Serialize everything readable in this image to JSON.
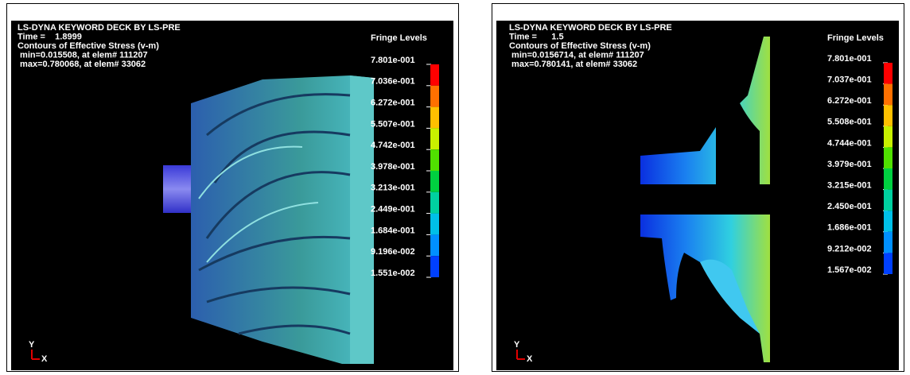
{
  "panels": [
    {
      "header": [
        "LS-DYNA KEYWORD DECK BY LS-PRE",
        "Time =    1.8999",
        "Contours of Effective Stress (v-m)",
        " min=0.015508, at elem# 111207",
        " max=0.780068, at elem# 33062"
      ],
      "legend_title": "Fringe Levels",
      "levels": [
        "7.801e-001",
        "7.036e-001",
        "6.272e-001",
        "5.507e-001",
        "4.742e-001",
        "3.978e-001",
        "3.213e-001",
        "2.449e-001",
        "1.684e-001",
        "9.196e-002",
        "1.551e-002"
      ],
      "axes": [
        "Y",
        "X"
      ]
    },
    {
      "header": [
        "LS-DYNA KEYWORD DECK BY LS-PRE",
        "Time =      1.5",
        "Contours of Effective Stress (v-m)",
        " min=0.0156714, at elem# 111207",
        " max=0.780141, at elem# 33062"
      ],
      "legend_title": "Fringe Levels",
      "levels": [
        "7.801e-001",
        "7.037e-001",
        "6.272e-001",
        "5.508e-001",
        "4.744e-001",
        "3.979e-001",
        "3.215e-001",
        "2.450e-001",
        "1.686e-001",
        "9.212e-002",
        "1.567e-002"
      ],
      "axes": [
        "Y",
        "X"
      ]
    }
  ]
}
